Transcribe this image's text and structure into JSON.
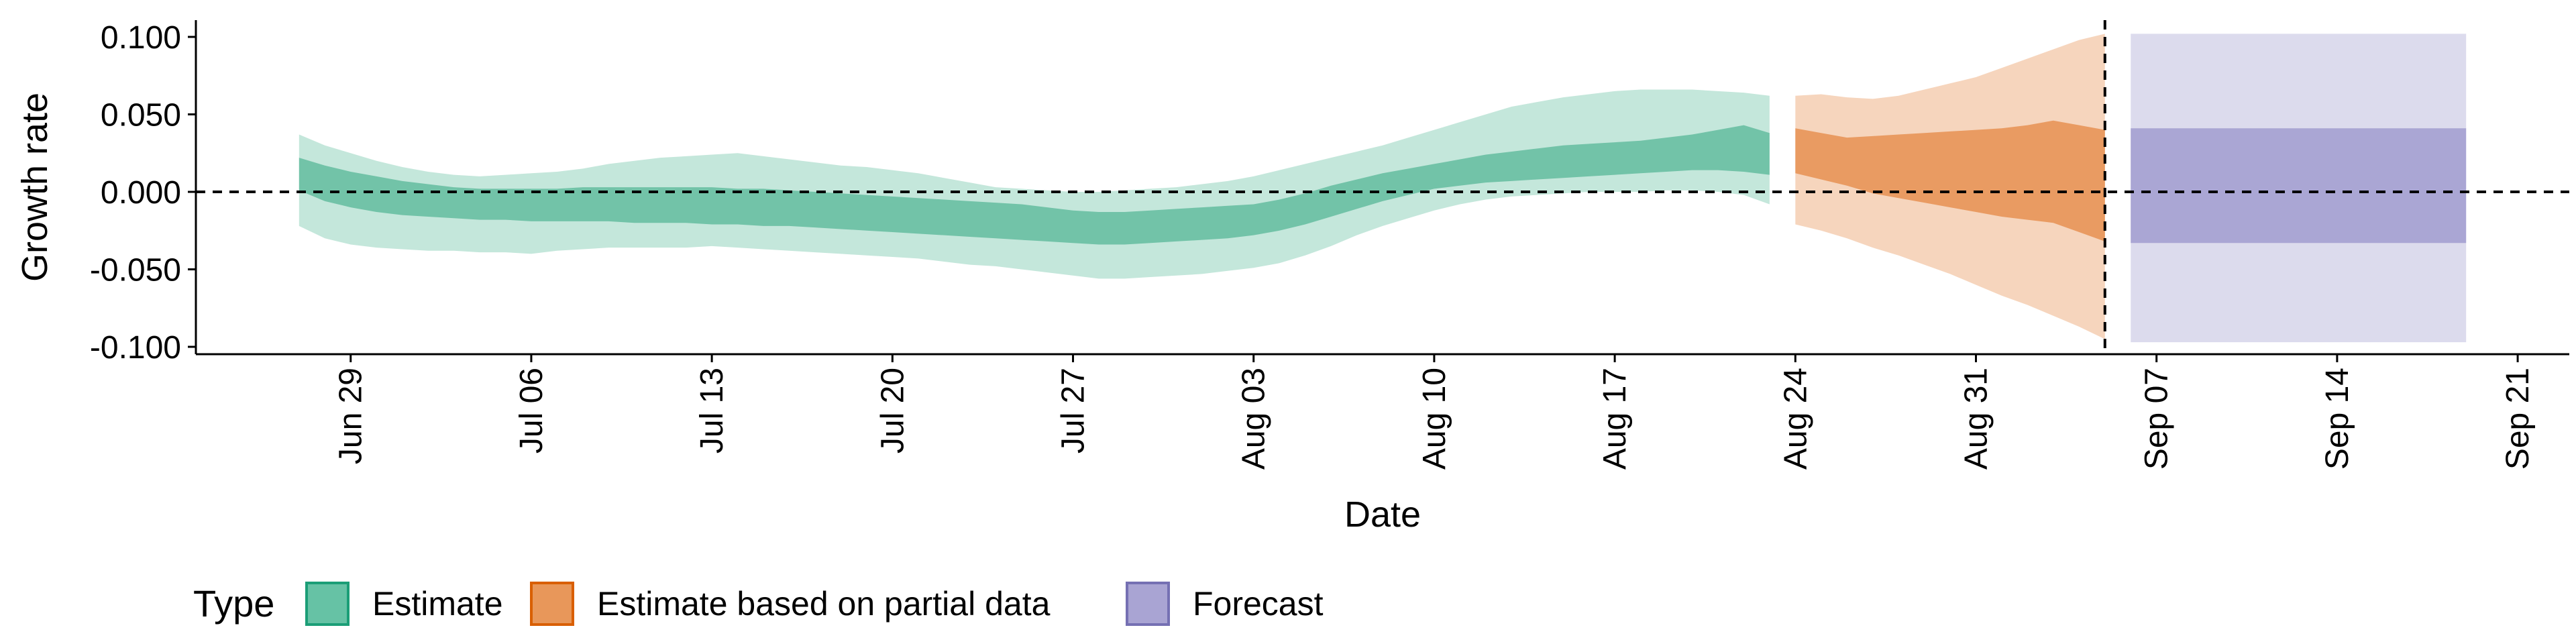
{
  "chart_data": {
    "type": "area",
    "xlabel": "Date",
    "ylabel": "Growth rate",
    "ylim": [
      -0.1,
      0.1
    ],
    "y_ticks": [
      "0.100",
      "0.050",
      "0.000",
      "-0.050",
      "-0.100"
    ],
    "y_tick_values": [
      0.1,
      0.05,
      0.0,
      -0.05,
      -0.1
    ],
    "x_ticks": [
      "Jun 29",
      "Jul 06",
      "Jul 13",
      "Jul 20",
      "Jul 27",
      "Aug 03",
      "Aug 10",
      "Aug 17",
      "Aug 24",
      "Aug 31",
      "Sep 07",
      "Sep 14",
      "Sep 21"
    ],
    "x_tick_dates": [
      "2020-06-29",
      "2020-07-06",
      "2020-07-13",
      "2020-07-20",
      "2020-07-27",
      "2020-08-03",
      "2020-08-10",
      "2020-08-17",
      "2020-08-24",
      "2020-08-31",
      "2020-09-07",
      "2020-09-14",
      "2020-09-21"
    ],
    "x_range": [
      "2020-06-23",
      "2020-09-23"
    ],
    "reference_lines": {
      "hline_y": 0.0,
      "vline_date": "2020-09-05"
    },
    "grid": false,
    "legend": {
      "position": "bottom-left",
      "title": "Type",
      "items": [
        {
          "label": "Estimate",
          "fill": "#66c2a5",
          "border": "#1b9e77"
        },
        {
          "label": "Estimate based on partial data",
          "fill": "#e8975a",
          "border": "#d95f02"
        },
        {
          "label": "Forecast",
          "fill": "#a9a4d3",
          "border": "#7570b3"
        }
      ]
    },
    "series": [
      {
        "name": "Estimate",
        "colors": {
          "outer": "#c4e7db",
          "inner": "#72c3a8"
        },
        "x": [
          "2020-06-27",
          "2020-06-28",
          "2020-06-29",
          "2020-06-30",
          "2020-07-01",
          "2020-07-02",
          "2020-07-03",
          "2020-07-04",
          "2020-07-05",
          "2020-07-06",
          "2020-07-07",
          "2020-07-08",
          "2020-07-09",
          "2020-07-10",
          "2020-07-11",
          "2020-07-12",
          "2020-07-13",
          "2020-07-14",
          "2020-07-15",
          "2020-07-16",
          "2020-07-17",
          "2020-07-18",
          "2020-07-19",
          "2020-07-20",
          "2020-07-21",
          "2020-07-22",
          "2020-07-23",
          "2020-07-24",
          "2020-07-25",
          "2020-07-26",
          "2020-07-27",
          "2020-07-28",
          "2020-07-29",
          "2020-07-30",
          "2020-07-31",
          "2020-08-01",
          "2020-08-02",
          "2020-08-03",
          "2020-08-04",
          "2020-08-05",
          "2020-08-06",
          "2020-08-07",
          "2020-08-08",
          "2020-08-09",
          "2020-08-10",
          "2020-08-11",
          "2020-08-12",
          "2020-08-13",
          "2020-08-14",
          "2020-08-15",
          "2020-08-16",
          "2020-08-17",
          "2020-08-18",
          "2020-08-19",
          "2020-08-20",
          "2020-08-21",
          "2020-08-22",
          "2020-08-23"
        ],
        "outer_upper": [
          0.037,
          0.03,
          0.025,
          0.02,
          0.016,
          0.013,
          0.011,
          0.01,
          0.011,
          0.012,
          0.013,
          0.015,
          0.018,
          0.02,
          0.022,
          0.023,
          0.024,
          0.025,
          0.023,
          0.021,
          0.019,
          0.017,
          0.016,
          0.014,
          0.012,
          0.009,
          0.006,
          0.003,
          0.002,
          0.001,
          0.0,
          0.0,
          0.001,
          0.002,
          0.003,
          0.005,
          0.007,
          0.01,
          0.014,
          0.018,
          0.022,
          0.026,
          0.03,
          0.035,
          0.04,
          0.045,
          0.05,
          0.055,
          0.058,
          0.061,
          0.063,
          0.065,
          0.066,
          0.066,
          0.066,
          0.065,
          0.064,
          0.062
        ],
        "outer_lower": [
          -0.022,
          -0.03,
          -0.034,
          -0.036,
          -0.037,
          -0.038,
          -0.038,
          -0.039,
          -0.039,
          -0.04,
          -0.038,
          -0.037,
          -0.036,
          -0.036,
          -0.036,
          -0.036,
          -0.035,
          -0.036,
          -0.037,
          -0.038,
          -0.039,
          -0.04,
          -0.041,
          -0.042,
          -0.043,
          -0.045,
          -0.047,
          -0.048,
          -0.05,
          -0.052,
          -0.054,
          -0.056,
          -0.056,
          -0.055,
          -0.054,
          -0.053,
          -0.051,
          -0.049,
          -0.046,
          -0.041,
          -0.035,
          -0.028,
          -0.022,
          -0.017,
          -0.012,
          -0.008,
          -0.005,
          -0.003,
          -0.002,
          -0.001,
          0.0,
          0.0,
          0.0,
          0.001,
          0.001,
          0.0,
          -0.002,
          -0.008
        ],
        "inner_upper": [
          0.022,
          0.017,
          0.013,
          0.01,
          0.007,
          0.005,
          0.003,
          0.002,
          0.002,
          0.002,
          0.002,
          0.003,
          0.003,
          0.003,
          0.003,
          0.003,
          0.003,
          0.002,
          0.002,
          0.001,
          0.0,
          -0.001,
          -0.002,
          -0.003,
          -0.004,
          -0.005,
          -0.006,
          -0.007,
          -0.008,
          -0.01,
          -0.012,
          -0.013,
          -0.013,
          -0.012,
          -0.011,
          -0.01,
          -0.009,
          -0.008,
          -0.005,
          -0.001,
          0.004,
          0.008,
          0.012,
          0.015,
          0.018,
          0.021,
          0.024,
          0.026,
          0.028,
          0.03,
          0.031,
          0.032,
          0.033,
          0.035,
          0.037,
          0.04,
          0.043,
          0.038
        ],
        "inner_lower": [
          0.001,
          -0.006,
          -0.01,
          -0.013,
          -0.015,
          -0.016,
          -0.017,
          -0.018,
          -0.018,
          -0.019,
          -0.019,
          -0.019,
          -0.019,
          -0.02,
          -0.02,
          -0.02,
          -0.021,
          -0.021,
          -0.022,
          -0.022,
          -0.023,
          -0.024,
          -0.025,
          -0.026,
          -0.027,
          -0.028,
          -0.029,
          -0.03,
          -0.031,
          -0.032,
          -0.033,
          -0.034,
          -0.034,
          -0.033,
          -0.032,
          -0.031,
          -0.03,
          -0.028,
          -0.025,
          -0.021,
          -0.016,
          -0.011,
          -0.006,
          -0.002,
          0.002,
          0.004,
          0.006,
          0.007,
          0.008,
          0.009,
          0.01,
          0.011,
          0.012,
          0.013,
          0.014,
          0.014,
          0.013,
          0.011
        ]
      },
      {
        "name": "Estimate based on partial data",
        "colors": {
          "outer": "#f6d5bd",
          "inner": "#e99b62"
        },
        "x": [
          "2020-08-24",
          "2020-08-25",
          "2020-08-26",
          "2020-08-27",
          "2020-08-28",
          "2020-08-29",
          "2020-08-30",
          "2020-08-31",
          "2020-09-01",
          "2020-09-02",
          "2020-09-03",
          "2020-09-04",
          "2020-09-05"
        ],
        "outer_upper": [
          0.062,
          0.063,
          0.061,
          0.06,
          0.062,
          0.066,
          0.07,
          0.074,
          0.08,
          0.086,
          0.092,
          0.098,
          0.102
        ],
        "outer_lower": [
          -0.021,
          -0.025,
          -0.03,
          -0.036,
          -0.041,
          -0.047,
          -0.053,
          -0.06,
          -0.067,
          -0.073,
          -0.08,
          -0.087,
          -0.095
        ],
        "inner_upper": [
          0.041,
          0.038,
          0.035,
          0.036,
          0.037,
          0.038,
          0.039,
          0.04,
          0.041,
          0.043,
          0.046,
          0.043,
          0.04
        ],
        "inner_lower": [
          0.012,
          0.008,
          0.004,
          -0.001,
          -0.004,
          -0.007,
          -0.01,
          -0.013,
          -0.016,
          -0.018,
          -0.02,
          -0.026,
          -0.032
        ]
      },
      {
        "name": "Forecast",
        "colors": {
          "outer": "#dcdbed",
          "inner": "#aaa6d4"
        },
        "x": [
          "2020-09-06",
          "2020-09-19"
        ],
        "outer_upper": [
          0.102,
          0.102
        ],
        "outer_lower": [
          -0.097,
          -0.097
        ],
        "inner_upper": [
          0.041,
          0.041
        ],
        "inner_lower": [
          -0.033,
          -0.033
        ]
      }
    ]
  }
}
